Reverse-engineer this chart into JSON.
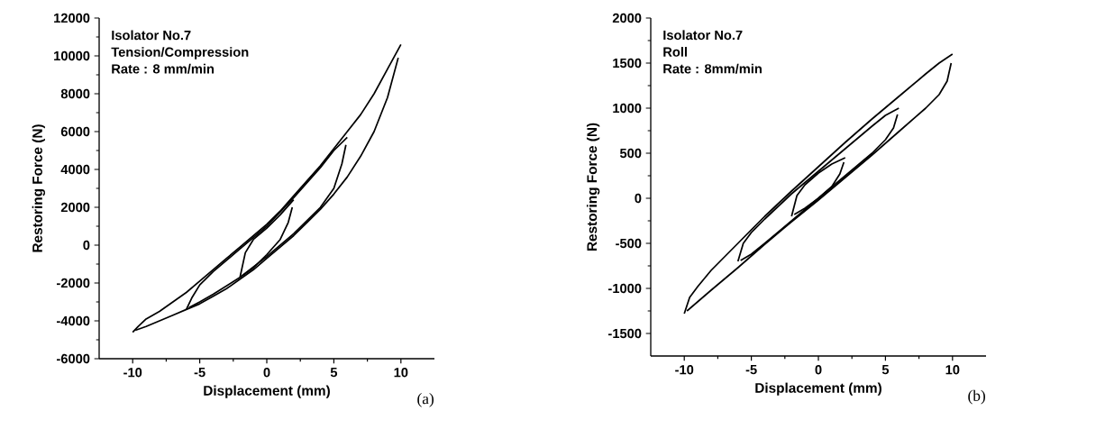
{
  "chart_data": [
    {
      "type": "line",
      "title": "(a)",
      "xlabel": "Displacement (mm)",
      "ylabel": "Restoring Force (N)",
      "annotations": [
        "Isolator No.7",
        "Tension/Compression",
        "Rate : 8 mm/min"
      ],
      "xlim": [
        -12.5,
        12.5
      ],
      "xticks": [
        -10,
        -5,
        0,
        5,
        10
      ],
      "ylim": [
        -6000,
        12000
      ],
      "yticks": [
        -6000,
        -4000,
        -2000,
        0,
        2000,
        4000,
        6000,
        8000,
        10000,
        12000
      ],
      "series": [
        {
          "color": "#000000",
          "x": [
            -10,
            -9.6,
            -9,
            -8,
            -7,
            -6,
            -5,
            -4,
            -3,
            -2,
            -1,
            0,
            1,
            2,
            3,
            4,
            5,
            6,
            7,
            8,
            9,
            10
          ],
          "values": [
            -4600,
            -4300,
            -3900,
            -3500,
            -3000,
            -2500,
            -1900,
            -1300,
            -700,
            -100,
            500,
            1100,
            1800,
            2600,
            3400,
            4200,
            5100,
            6000,
            6900,
            8000,
            9300,
            10600
          ]
        },
        {
          "color": "#000000",
          "x": [
            -9.8,
            -9,
            -8,
            -7,
            -6,
            -5,
            -4,
            -3,
            -2,
            -1,
            0,
            1,
            2,
            3,
            4,
            5,
            6,
            7,
            8,
            9,
            9.8
          ],
          "values": [
            -4500,
            -4300,
            -4000,
            -3700,
            -3400,
            -3100,
            -2700,
            -2300,
            -1800,
            -1300,
            -700,
            -100,
            500,
            1200,
            1900,
            2700,
            3600,
            4700,
            6000,
            7800,
            9900
          ]
        },
        {
          "color": "#000000",
          "x": [
            -6,
            -5.6,
            -5,
            -4,
            -2,
            0,
            2,
            4,
            5,
            6
          ],
          "values": [
            -3400,
            -2800,
            -2100,
            -1400,
            -200,
            1000,
            2500,
            4100,
            5000,
            5700
          ]
        },
        {
          "color": "#000000",
          "x": [
            -5.8,
            -5,
            -4,
            -2,
            0,
            2,
            4,
            5,
            5.6,
            5.9
          ],
          "values": [
            -3300,
            -3000,
            -2600,
            -1700,
            -600,
            600,
            2000,
            3000,
            4300,
            5300
          ]
        },
        {
          "color": "#000000",
          "x": [
            -2,
            -1.6,
            -1,
            0,
            1,
            2
          ],
          "values": [
            -1700,
            -400,
            300,
            900,
            1600,
            2400
          ]
        },
        {
          "color": "#000000",
          "x": [
            -1.8,
            -1,
            0,
            1,
            1.6,
            1.9
          ],
          "values": [
            -1600,
            -1200,
            -500,
            300,
            1200,
            2000
          ]
        }
      ]
    },
    {
      "type": "line",
      "title": "(b)",
      "xlabel": "Displacement (mm)",
      "ylabel": "Restoring Force (N)",
      "annotations": [
        "Isolator No.7",
        "Roll",
        "Rate : 8mm/min"
      ],
      "xlim": [
        -12.5,
        12.5
      ],
      "xticks": [
        -10,
        -5,
        0,
        5,
        10
      ],
      "ylim": [
        -1750,
        2000
      ],
      "yticks": [
        -1500,
        -1000,
        -500,
        0,
        500,
        1000,
        1500,
        2000
      ],
      "series": [
        {
          "color": "#000000",
          "x": [
            -10,
            -9.6,
            -9,
            -8,
            -6,
            -4,
            -2,
            0,
            2,
            4,
            6,
            8,
            9,
            10
          ],
          "values": [
            -1280,
            -1100,
            -980,
            -800,
            -500,
            -200,
            80,
            350,
            620,
            880,
            1130,
            1380,
            1500,
            1600
          ]
        },
        {
          "color": "#000000",
          "x": [
            -9.8,
            -8,
            -6,
            -4,
            -2,
            0,
            2,
            4,
            6,
            8,
            9,
            9.6,
            9.9
          ],
          "values": [
            -1250,
            -1020,
            -770,
            -510,
            -260,
            -20,
            230,
            480,
            740,
            1000,
            1150,
            1300,
            1500
          ]
        },
        {
          "color": "#000000",
          "x": [
            -6,
            -5.6,
            -5,
            -4,
            -2,
            0,
            2,
            4,
            5,
            6
          ],
          "values": [
            -700,
            -500,
            -380,
            -230,
            50,
            300,
            550,
            800,
            920,
            1000
          ]
        },
        {
          "color": "#000000",
          "x": [
            -5.8,
            -5,
            -4,
            -2,
            0,
            2,
            4,
            5,
            5.6,
            5.9
          ],
          "values": [
            -690,
            -620,
            -500,
            -250,
            0,
            250,
            500,
            650,
            780,
            930
          ]
        },
        {
          "color": "#000000",
          "x": [
            -2,
            -1.6,
            -1,
            0,
            1,
            2
          ],
          "values": [
            -200,
            30,
            150,
            280,
            380,
            450
          ]
        },
        {
          "color": "#000000",
          "x": [
            -1.8,
            -1,
            0,
            1,
            1.6,
            1.9
          ],
          "values": [
            -180,
            -110,
            0,
            130,
            270,
            400
          ]
        }
      ]
    }
  ]
}
